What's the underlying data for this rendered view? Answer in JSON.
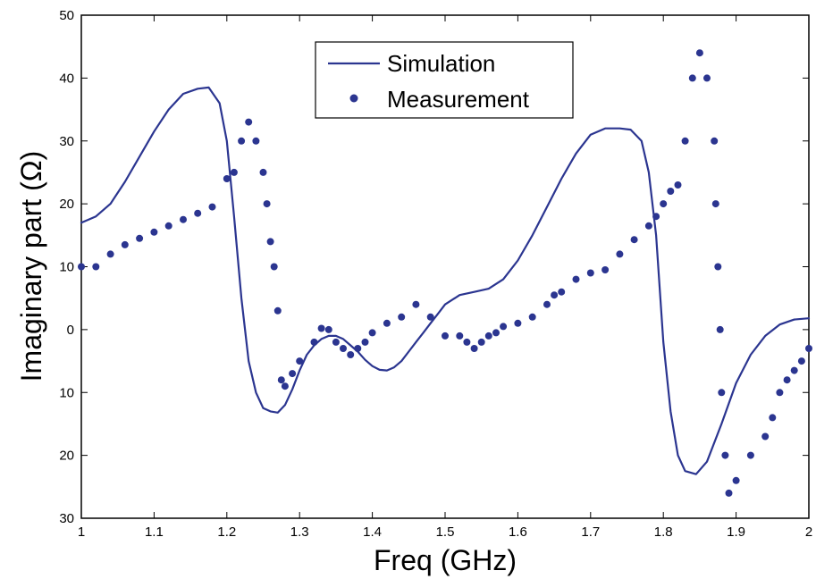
{
  "chart_data": {
    "type": "line",
    "xlabel": "Freq (GHz)",
    "ylabel": "Imaginary part (Ω)",
    "xlim": [
      1,
      2
    ],
    "ylim": [
      -30,
      50
    ],
    "x_ticks": [
      1,
      1.1,
      1.2,
      1.3,
      1.4,
      1.5,
      1.6,
      1.7,
      1.8,
      1.9,
      2
    ],
    "x_tick_labels": [
      "1",
      "1.1",
      "1.2",
      "1.3",
      "1.4",
      "1.5",
      "1.6",
      "1.7",
      "1.8",
      "1.9",
      "2"
    ],
    "y_ticks": [
      50,
      40,
      30,
      20,
      10,
      0,
      -10,
      -20,
      -30
    ],
    "y_tick_labels": [
      "50",
      "40",
      "30",
      "20",
      "10",
      "0",
      "10",
      "20",
      "30"
    ],
    "grid": false,
    "legend_position": "top-center",
    "colors": {
      "series": "#2b3590"
    },
    "series": [
      {
        "name": "Simulation",
        "kind": "line",
        "x": [
          1.0,
          1.02,
          1.04,
          1.06,
          1.08,
          1.1,
          1.12,
          1.14,
          1.16,
          1.175,
          1.19,
          1.2,
          1.21,
          1.22,
          1.23,
          1.24,
          1.25,
          1.26,
          1.27,
          1.28,
          1.29,
          1.3,
          1.31,
          1.32,
          1.33,
          1.34,
          1.35,
          1.36,
          1.37,
          1.38,
          1.39,
          1.4,
          1.41,
          1.42,
          1.43,
          1.44,
          1.45,
          1.46,
          1.47,
          1.48,
          1.49,
          1.5,
          1.52,
          1.54,
          1.56,
          1.58,
          1.6,
          1.62,
          1.64,
          1.66,
          1.68,
          1.7,
          1.72,
          1.74,
          1.755,
          1.77,
          1.78,
          1.79,
          1.8,
          1.81,
          1.82,
          1.83,
          1.845,
          1.86,
          1.88,
          1.9,
          1.92,
          1.94,
          1.96,
          1.98,
          2.0
        ],
        "y": [
          17,
          18,
          20,
          23.5,
          27.5,
          31.5,
          35,
          37.5,
          38.3,
          38.5,
          36,
          30,
          18,
          5,
          -5,
          -10,
          -12.5,
          -13,
          -13.2,
          -12,
          -9.5,
          -6.5,
          -4,
          -2.5,
          -1.5,
          -1,
          -1,
          -1.5,
          -2.5,
          -3.5,
          -4.8,
          -5.8,
          -6.4,
          -6.5,
          -6,
          -5,
          -3.5,
          -2,
          -0.5,
          1,
          2.5,
          4,
          5.5,
          6,
          6.5,
          8,
          11,
          15,
          19.5,
          24,
          28,
          31,
          32,
          32,
          31.8,
          30,
          25,
          15,
          -2,
          -13,
          -20,
          -22.5,
          -23,
          -21,
          -15,
          -8.5,
          -4,
          -1,
          0.8,
          1.6,
          1.8
        ]
      },
      {
        "name": "Measurement",
        "kind": "markers",
        "x": [
          1.0,
          1.02,
          1.04,
          1.06,
          1.08,
          1.1,
          1.12,
          1.14,
          1.16,
          1.18,
          1.2,
          1.21,
          1.22,
          1.23,
          1.24,
          1.25,
          1.255,
          1.26,
          1.265,
          1.27,
          1.275,
          1.28,
          1.29,
          1.3,
          1.32,
          1.33,
          1.34,
          1.35,
          1.36,
          1.37,
          1.38,
          1.39,
          1.4,
          1.42,
          1.44,
          1.46,
          1.48,
          1.5,
          1.52,
          1.53,
          1.54,
          1.55,
          1.56,
          1.57,
          1.58,
          1.6,
          1.62,
          1.64,
          1.65,
          1.66,
          1.68,
          1.7,
          1.72,
          1.74,
          1.76,
          1.78,
          1.79,
          1.8,
          1.81,
          1.82,
          1.83,
          1.84,
          1.85,
          1.86,
          1.87,
          1.872,
          1.875,
          1.878,
          1.88,
          1.885,
          1.89,
          1.9,
          1.92,
          1.94,
          1.95,
          1.96,
          1.97,
          1.98,
          1.99,
          2.0
        ],
        "y": [
          10,
          10,
          12,
          13.5,
          14.5,
          15.5,
          16.5,
          17.5,
          18.5,
          19.5,
          24,
          25,
          30,
          33,
          30,
          25,
          20,
          14,
          10,
          3,
          -8,
          -9,
          -7,
          -5,
          -2,
          0.2,
          0,
          -2,
          -3,
          -4,
          -3,
          -2,
          -0.5,
          1,
          2,
          4,
          2,
          -1,
          -1,
          -2,
          -3,
          -2,
          -1,
          -0.5,
          0.5,
          1,
          2,
          4,
          5.5,
          6,
          8,
          9,
          9.5,
          12,
          14.3,
          16.5,
          18,
          20,
          22,
          23,
          30,
          40,
          44,
          40,
          30,
          20,
          10,
          0,
          -10,
          -20,
          -26,
          -24,
          -20,
          -17,
          -14,
          -10,
          -8,
          -6.5,
          -5,
          -3
        ]
      }
    ]
  }
}
